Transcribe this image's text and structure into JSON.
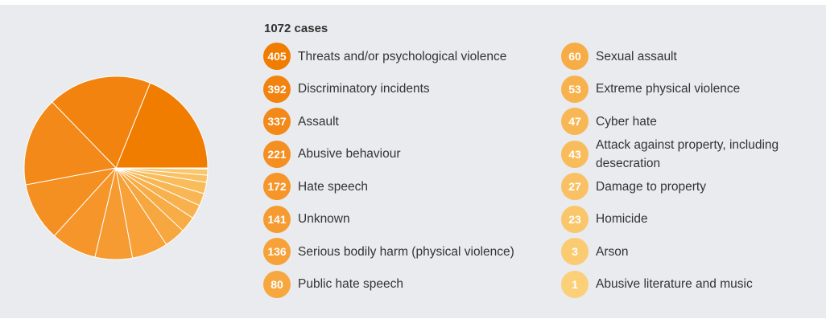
{
  "chart_data": {
    "type": "pie",
    "total_label": "1072 cases",
    "slices": [
      {
        "label": "Threats and/or psychological violence",
        "value": 405,
        "color": "#f07c00"
      },
      {
        "label": "Discriminatory incidents",
        "value": 392,
        "color": "#f2830f"
      },
      {
        "label": "Assault",
        "value": 337,
        "color": "#f38918"
      },
      {
        "label": "Abusive behaviour",
        "value": 221,
        "color": "#f48f21"
      },
      {
        "label": "Hate speech",
        "value": 172,
        "color": "#f5952a"
      },
      {
        "label": "Unknown",
        "value": 141,
        "color": "#f69b31"
      },
      {
        "label": "Serious bodily harm (physical violence)",
        "value": 136,
        "color": "#f7a138"
      },
      {
        "label": "Public hate speech",
        "value": 80,
        "color": "#f7a73f"
      },
      {
        "label": "Sexual assault",
        "value": 60,
        "color": "#f7ac45"
      },
      {
        "label": "Extreme physical violence",
        "value": 53,
        "color": "#f8b24d"
      },
      {
        "label": "Cyber hate",
        "value": 47,
        "color": "#f8b754"
      },
      {
        "label": "Attack against property, including desecration",
        "value": 43,
        "color": "#f9bc5b"
      },
      {
        "label": "Damage to property",
        "value": 27,
        "color": "#f9c163"
      },
      {
        "label": "Homicide",
        "value": 23,
        "color": "#fac66a"
      },
      {
        "label": "Arson",
        "value": 3,
        "color": "#facb71"
      },
      {
        "label": "Abusive literature and music",
        "value": 1,
        "color": "#fbd078"
      }
    ]
  }
}
